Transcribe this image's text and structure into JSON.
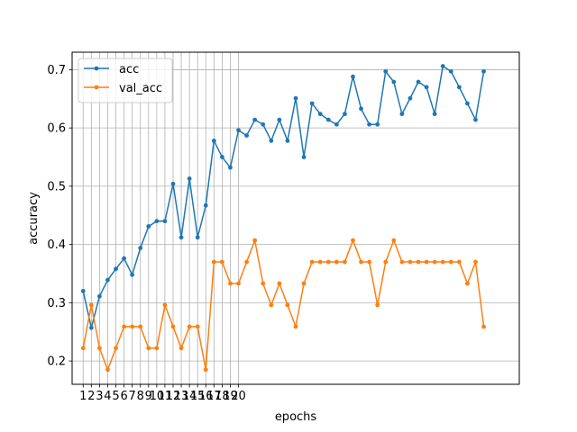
{
  "chart_data": {
    "type": "line",
    "xlabel": "epochs",
    "ylabel": "accuracy",
    "x_ticks": [
      "1",
      "2",
      "3",
      "4",
      "5",
      "6",
      "7",
      "8",
      "9",
      "10",
      "11",
      "12",
      "13",
      "14",
      "15",
      "16",
      "17",
      "18",
      "19",
      "20"
    ],
    "ylim": [
      0.16,
      0.73
    ],
    "y_ticks": [
      0.2,
      0.3,
      0.4,
      0.5,
      0.6,
      0.7
    ],
    "xlim": [
      -1.35,
      53.35
    ],
    "grid": true,
    "legend_position": "top-left",
    "series": [
      {
        "name": "acc",
        "color": "#1f77b4",
        "values": [
          0.32,
          0.257,
          0.311,
          0.339,
          0.358,
          0.376,
          0.348,
          0.394,
          0.431,
          0.44,
          0.44,
          0.504,
          0.412,
          0.513,
          0.412,
          0.467,
          0.578,
          0.55,
          0.532,
          0.596,
          0.587,
          0.614,
          0.606,
          0.578,
          0.614,
          0.578,
          0.651,
          0.55,
          0.642,
          0.624,
          0.614,
          0.606,
          0.624,
          0.688,
          0.633,
          0.606,
          0.606,
          0.697,
          0.679,
          0.624,
          0.651,
          0.679,
          0.67,
          0.624,
          0.706,
          0.697,
          0.67,
          0.642,
          0.614,
          0.697
        ]
      },
      {
        "name": "val_acc",
        "color": "#ff7f0e",
        "values": [
          0.222,
          0.296,
          0.222,
          0.185,
          0.222,
          0.259,
          0.259,
          0.259,
          0.222,
          0.222,
          0.296,
          0.259,
          0.222,
          0.259,
          0.259,
          0.185,
          0.37,
          0.37,
          0.333,
          0.333,
          0.37,
          0.407,
          0.333,
          0.296,
          0.333,
          0.296,
          0.259,
          0.333,
          0.37,
          0.37,
          0.37,
          0.37,
          0.37,
          0.407,
          0.37,
          0.37,
          0.296,
          0.37,
          0.407,
          0.37,
          0.37,
          0.37,
          0.37,
          0.37,
          0.37,
          0.37,
          0.37,
          0.333,
          0.37,
          0.259
        ]
      }
    ]
  }
}
